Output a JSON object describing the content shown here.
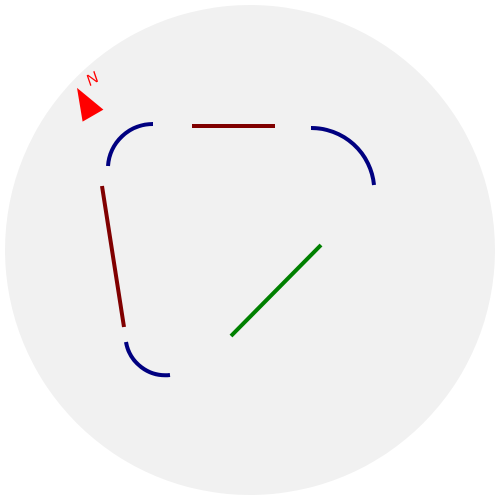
{
  "map": {
    "background_color": "#f1f1f1",
    "compass": {
      "label": "N",
      "color": "#ff0000",
      "icon": "north-arrow-icon"
    },
    "styles": {
      "blue_curve": "#000080",
      "dark_red": "#800000",
      "green": "#008000"
    }
  }
}
